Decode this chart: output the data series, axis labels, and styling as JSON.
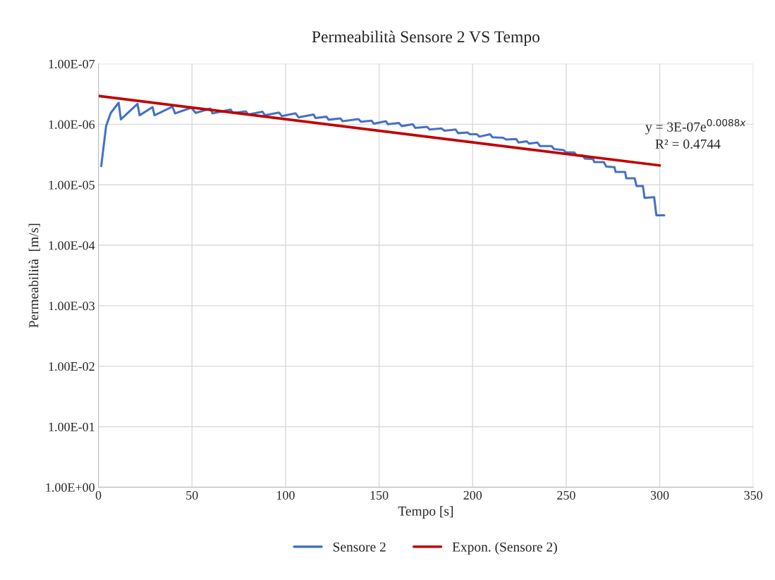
{
  "chart_data": {
    "type": "line",
    "title": "Permeabilità Sensore 2 VS Tempo",
    "xlabel": "Tempo [s]",
    "ylabel": "Permeabilità  [m/s]",
    "log": "y",
    "xlim": [
      0,
      350
    ],
    "xticks": [
      0,
      50,
      100,
      150,
      200,
      250,
      300,
      350
    ],
    "ylim": [
      1,
      1e-07
    ],
    "yticks": [
      {
        "value": 1e-07,
        "label": "1.00E-07"
      },
      {
        "value": 1e-06,
        "label": "1.00E-06"
      },
      {
        "value": 1e-05,
        "label": "1.00E-05"
      },
      {
        "value": 0.0001,
        "label": "1.00E-04"
      },
      {
        "value": 0.001,
        "label": "1.00E-03"
      },
      {
        "value": 0.01,
        "label": "1.00E-02"
      },
      {
        "value": 0.1,
        "label": "1.00E-01"
      },
      {
        "value": 1,
        "label": "1.00E+00"
      }
    ],
    "grid": true,
    "legend": "bottom",
    "marker": "none",
    "line_style": "solid",
    "annotations": [
      "y = 3E-07e$^{0.0088x}$",
      "R² = 0.4744"
    ],
    "series": [
      {
        "name": "Sensore 2",
        "color": "#4472c4",
        "x": [
          1.5,
          4.1,
          6.6,
          10.8,
          12,
          20.9,
          22,
          28.9,
          30,
          39.5,
          41,
          49.7,
          52,
          59.8,
          61,
          70.6,
          72,
          78.8,
          80,
          87.7,
          89,
          96.5,
          98,
          105.4,
          107,
          115,
          116,
          121.9,
          123,
          129.4,
          130.5,
          139,
          140.3,
          146,
          147.2,
          153.6,
          154.8,
          160.5,
          162.2,
          168,
          169.4,
          175.7,
          177,
          183.3,
          185,
          190.9,
          192.2,
          197.3,
          198.5,
          202.3,
          203.6,
          209.3,
          210.6,
          216.3,
          217.9,
          223.2,
          224.5,
          228.9,
          230.2,
          234.6,
          236,
          242.2,
          243.5,
          248.6,
          249.8,
          254.3,
          255.5,
          258.7,
          260,
          264.4,
          265,
          270.1,
          271.4,
          275.8,
          276.4,
          281.5,
          282.1,
          286.6,
          287.6,
          291,
          291.9,
          297,
          298.2,
          302.4
        ],
        "values": [
          4.9e-06,
          1.07e-06,
          6.5e-07,
          4.4e-07,
          8.3e-07,
          4.6e-07,
          7.1e-07,
          5.2e-07,
          7.1e-07,
          5.1e-07,
          6.6e-07,
          5.3e-07,
          6.5e-07,
          5.5e-07,
          6.6e-07,
          5.7e-07,
          6.5e-07,
          6.1e-07,
          6.9e-07,
          6.2e-07,
          7.1e-07,
          6.4e-07,
          7.3e-07,
          6.6e-07,
          7.7e-07,
          6.9e-07,
          7.9e-07,
          7.5e-07,
          8.4e-07,
          8e-07,
          8.9e-07,
          8.2e-07,
          9.1e-07,
          8.7e-07,
          9.8e-07,
          8.9e-07,
          1e-06,
          9.5e-07,
          1.07e-06,
          1e-06,
          1.15e-06,
          1.1e-06,
          1.22e-06,
          1.17e-06,
          1.28e-06,
          1.22e-06,
          1.4e-06,
          1.37e-06,
          1.46e-06,
          1.46e-06,
          1.6e-06,
          1.46e-06,
          1.64e-06,
          1.67e-06,
          1.79e-06,
          1.75e-06,
          2e-06,
          1.91e-06,
          2.09e-06,
          2e-06,
          2.29e-06,
          2.29e-06,
          2.57e-06,
          2.67e-06,
          2.91e-06,
          2.91e-06,
          3.28e-06,
          3.28e-06,
          3.68e-06,
          3.75e-06,
          4.21e-06,
          4.21e-06,
          4.99e-06,
          5.13e-06,
          6.14e-06,
          6.14e-06,
          7.82e-06,
          7.82e-06,
          1.05e-05,
          1.05e-05,
          1.65e-05,
          1.6e-05,
          3.2e-05,
          3.2e-05
        ]
      },
      {
        "name": "Expon. (Sensore 2)",
        "color": "#c00000",
        "type": "line",
        "x": [
          0,
          300
        ],
        "values": [
          3.4e-07,
          4.8e-06
        ]
      }
    ]
  }
}
